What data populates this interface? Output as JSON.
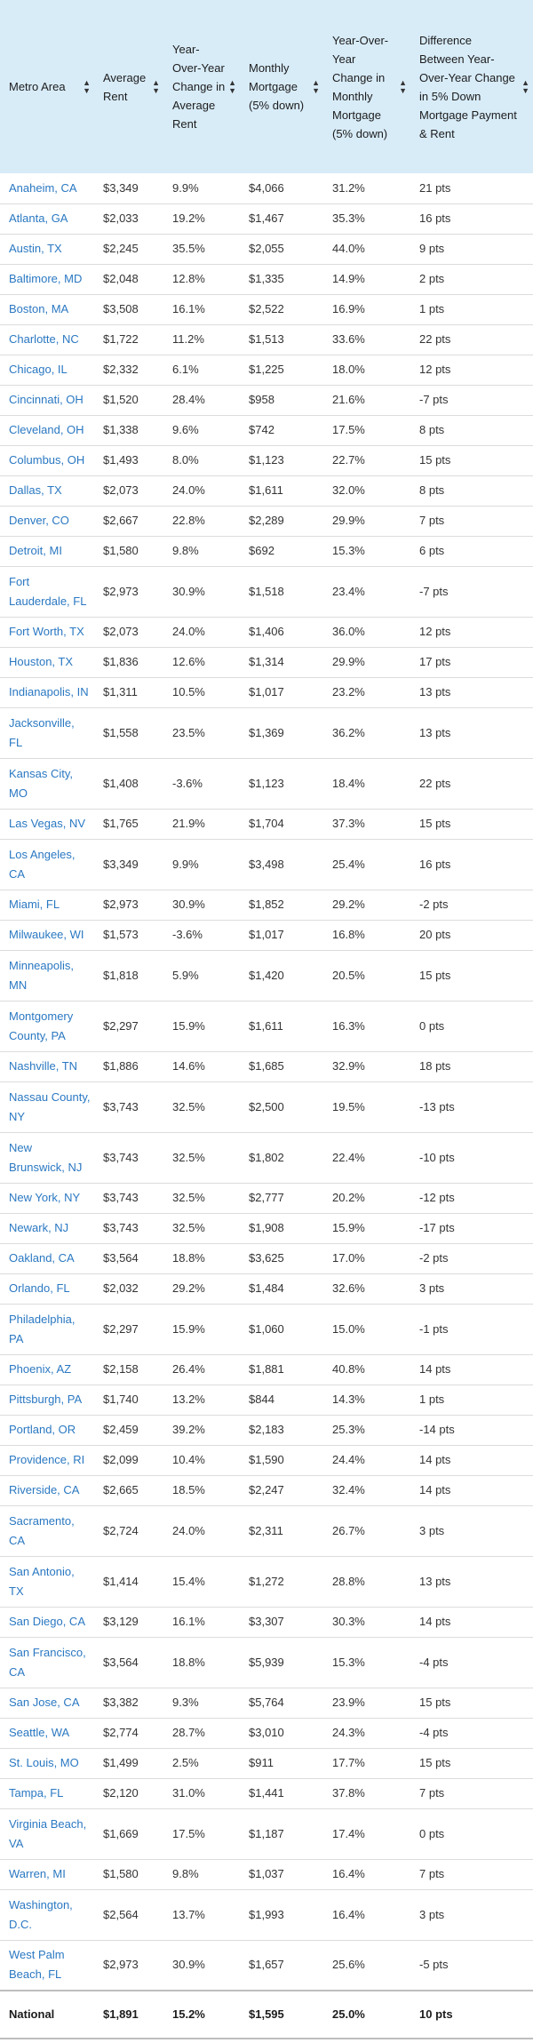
{
  "table": {
    "headers": [
      "Metro Area",
      "Average Rent",
      "Year-Over-Year Change in Average Rent",
      "Monthly Mortgage (5% down)",
      "Year-Over-Year Change in Monthly Mortgage (5% down)",
      "Difference Between Year-Over-Year Change in 5% Down Mortgage Payment & Rent"
    ],
    "rows": [
      [
        "Anaheim, CA",
        "$3,349",
        "9.9%",
        "$4,066",
        "31.2%",
        "21 pts"
      ],
      [
        "Atlanta, GA",
        "$2,033",
        "19.2%",
        "$1,467",
        "35.3%",
        "16 pts"
      ],
      [
        "Austin, TX",
        "$2,245",
        "35.5%",
        "$2,055",
        "44.0%",
        "9 pts"
      ],
      [
        "Baltimore, MD",
        "$2,048",
        "12.8%",
        "$1,335",
        "14.9%",
        "2 pts"
      ],
      [
        "Boston, MA",
        "$3,508",
        "16.1%",
        "$2,522",
        "16.9%",
        "1 pts"
      ],
      [
        "Charlotte, NC",
        "$1,722",
        "11.2%",
        "$1,513",
        "33.6%",
        "22 pts"
      ],
      [
        "Chicago, IL",
        "$2,332",
        "6.1%",
        "$1,225",
        "18.0%",
        "12 pts"
      ],
      [
        "Cincinnati, OH",
        "$1,520",
        "28.4%",
        "$958",
        "21.6%",
        "-7 pts"
      ],
      [
        "Cleveland, OH",
        "$1,338",
        "9.6%",
        "$742",
        "17.5%",
        "8 pts"
      ],
      [
        "Columbus, OH",
        "$1,493",
        "8.0%",
        "$1,123",
        "22.7%",
        "15 pts"
      ],
      [
        "Dallas, TX",
        "$2,073",
        "24.0%",
        "$1,611",
        "32.0%",
        "8 pts"
      ],
      [
        "Denver, CO",
        "$2,667",
        "22.8%",
        "$2,289",
        "29.9%",
        "7 pts"
      ],
      [
        "Detroit, MI",
        "$1,580",
        "9.8%",
        "$692",
        "15.3%",
        "6 pts"
      ],
      [
        "Fort Lauderdale, FL",
        "$2,973",
        "30.9%",
        "$1,518",
        "23.4%",
        "-7 pts"
      ],
      [
        "Fort Worth, TX",
        "$2,073",
        "24.0%",
        "$1,406",
        "36.0%",
        "12 pts"
      ],
      [
        "Houston, TX",
        "$1,836",
        "12.6%",
        "$1,314",
        "29.9%",
        "17 pts"
      ],
      [
        "Indianapolis, IN",
        "$1,311",
        "10.5%",
        "$1,017",
        "23.2%",
        "13 pts"
      ],
      [
        "Jacksonville, FL",
        "$1,558",
        "23.5%",
        "$1,369",
        "36.2%",
        "13 pts"
      ],
      [
        "Kansas City, MO",
        "$1,408",
        "-3.6%",
        "$1,123",
        "18.4%",
        "22 pts"
      ],
      [
        "Las Vegas, NV",
        "$1,765",
        "21.9%",
        "$1,704",
        "37.3%",
        "15 pts"
      ],
      [
        "Los Angeles, CA",
        "$3,349",
        "9.9%",
        "$3,498",
        "25.4%",
        "16 pts"
      ],
      [
        "Miami, FL",
        "$2,973",
        "30.9%",
        "$1,852",
        "29.2%",
        "-2 pts"
      ],
      [
        "Milwaukee, WI",
        "$1,573",
        "-3.6%",
        "$1,017",
        "16.8%",
        "20 pts"
      ],
      [
        "Minneapolis, MN",
        "$1,818",
        "5.9%",
        "$1,420",
        "20.5%",
        "15 pts"
      ],
      [
        "Montgomery County, PA",
        "$2,297",
        "15.9%",
        "$1,611",
        "16.3%",
        "0 pts"
      ],
      [
        "Nashville, TN",
        "$1,886",
        "14.6%",
        "$1,685",
        "32.9%",
        "18 pts"
      ],
      [
        "Nassau County, NY",
        "$3,743",
        "32.5%",
        "$2,500",
        "19.5%",
        "-13 pts"
      ],
      [
        "New Brunswick, NJ",
        "$3,743",
        "32.5%",
        "$1,802",
        "22.4%",
        "-10 pts"
      ],
      [
        "New York, NY",
        "$3,743",
        "32.5%",
        "$2,777",
        "20.2%",
        "-12 pts"
      ],
      [
        "Newark, NJ",
        "$3,743",
        "32.5%",
        "$1,908",
        "15.9%",
        "-17 pts"
      ],
      [
        "Oakland, CA",
        "$3,564",
        "18.8%",
        "$3,625",
        "17.0%",
        "-2 pts"
      ],
      [
        "Orlando, FL",
        "$2,032",
        "29.2%",
        "$1,484",
        "32.6%",
        "3 pts"
      ],
      [
        "Philadelphia, PA",
        "$2,297",
        "15.9%",
        "$1,060",
        "15.0%",
        "-1 pts"
      ],
      [
        "Phoenix, AZ",
        "$2,158",
        "26.4%",
        "$1,881",
        "40.8%",
        "14 pts"
      ],
      [
        "Pittsburgh, PA",
        "$1,740",
        "13.2%",
        "$844",
        "14.3%",
        "1 pts"
      ],
      [
        "Portland, OR",
        "$2,459",
        "39.2%",
        "$2,183",
        "25.3%",
        "-14 pts"
      ],
      [
        "Providence, RI",
        "$2,099",
        "10.4%",
        "$1,590",
        "24.4%",
        "14 pts"
      ],
      [
        "Riverside, CA",
        "$2,665",
        "18.5%",
        "$2,247",
        "32.4%",
        "14 pts"
      ],
      [
        "Sacramento, CA",
        "$2,724",
        "24.0%",
        "$2,311",
        "26.7%",
        "3 pts"
      ],
      [
        "San Antonio, TX",
        "$1,414",
        "15.4%",
        "$1,272",
        "28.8%",
        "13 pts"
      ],
      [
        "San Diego, CA",
        "$3,129",
        "16.1%",
        "$3,307",
        "30.3%",
        "14 pts"
      ],
      [
        "San Francisco, CA",
        "$3,564",
        "18.8%",
        "$5,939",
        "15.3%",
        "-4 pts"
      ],
      [
        "San Jose, CA",
        "$3,382",
        "9.3%",
        "$5,764",
        "23.9%",
        "15 pts"
      ],
      [
        "Seattle, WA",
        "$2,774",
        "28.7%",
        "$3,010",
        "24.3%",
        "-4 pts"
      ],
      [
        "St. Louis, MO",
        "$1,499",
        "2.5%",
        "$911",
        "17.7%",
        "15 pts"
      ],
      [
        "Tampa, FL",
        "$2,120",
        "31.0%",
        "$1,441",
        "37.8%",
        "7 pts"
      ],
      [
        "Virginia Beach, VA",
        "$1,669",
        "17.5%",
        "$1,187",
        "17.4%",
        "0 pts"
      ],
      [
        "Warren, MI",
        "$1,580",
        "9.8%",
        "$1,037",
        "16.4%",
        "7 pts"
      ],
      [
        "Washington, D.C.",
        "$2,564",
        "13.7%",
        "$1,993",
        "16.4%",
        "3 pts"
      ],
      [
        "West Palm Beach, FL",
        "$2,973",
        "30.9%",
        "$1,657",
        "25.6%",
        "-5 pts"
      ]
    ],
    "total": [
      "National",
      "$1,891",
      "15.2%",
      "$1,595",
      "25.0%",
      "10 pts"
    ]
  }
}
